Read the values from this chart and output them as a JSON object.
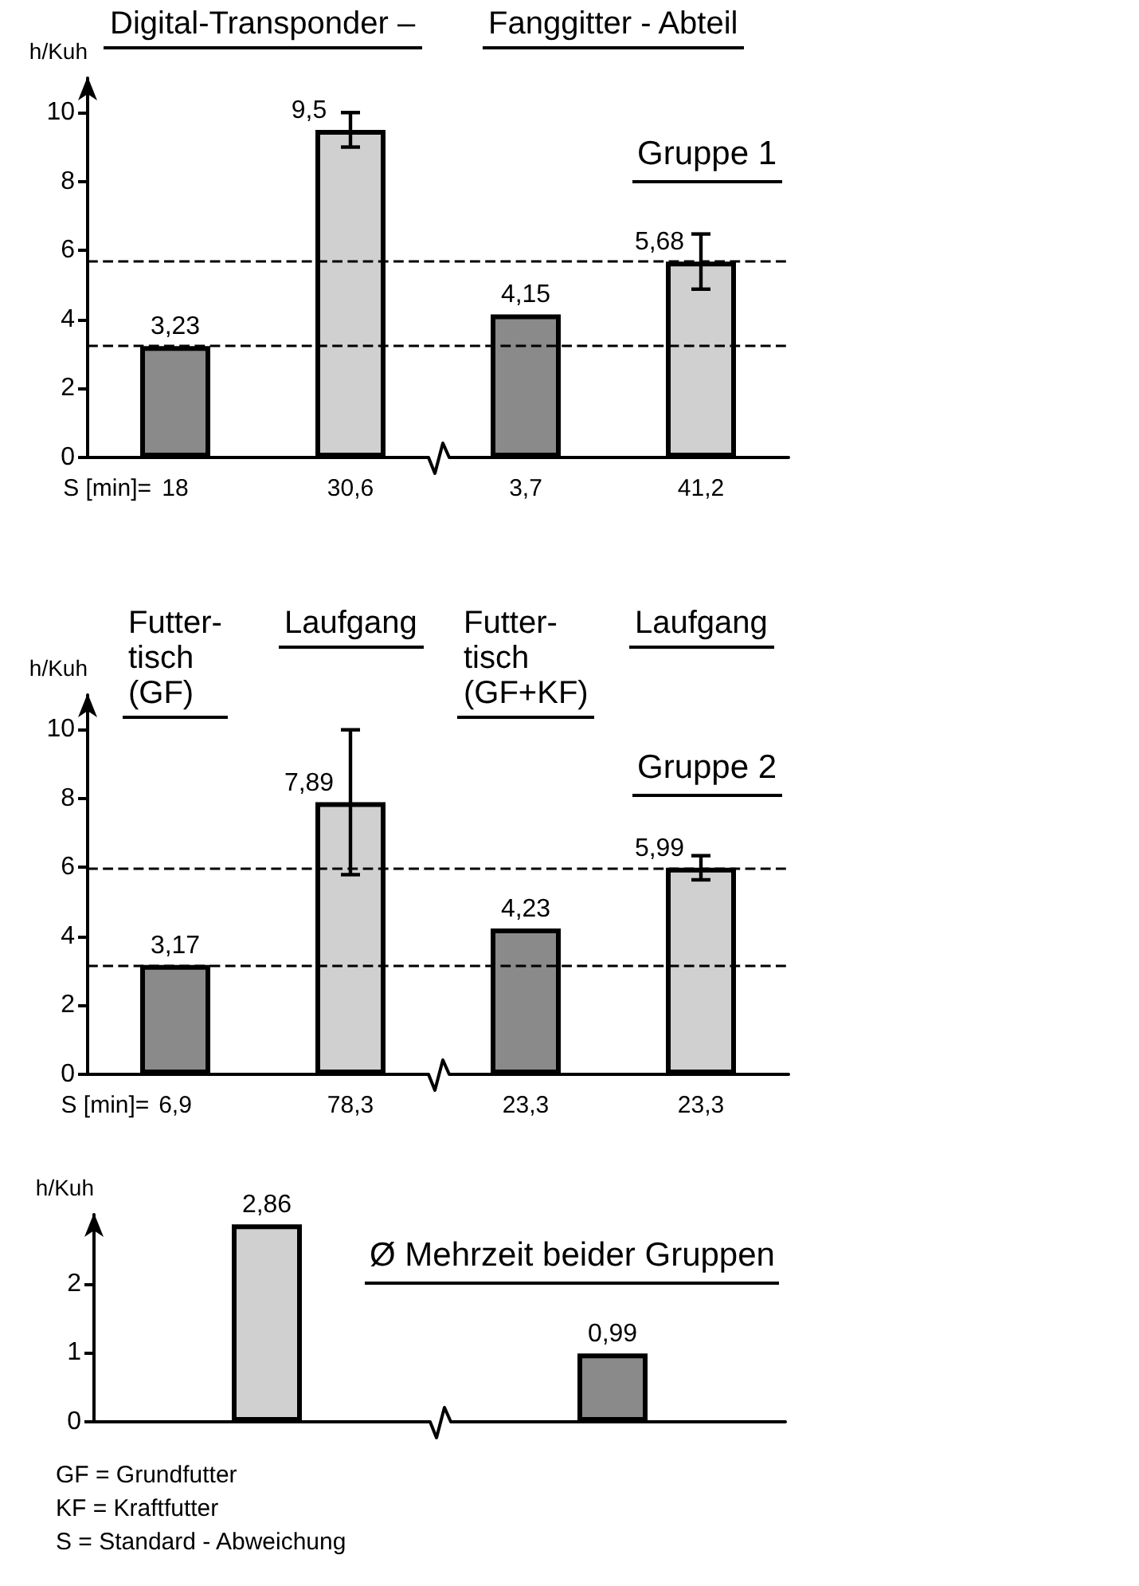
{
  "chart_data": [
    {
      "type": "bar",
      "title": "Gruppe 1",
      "xlabel": "S [min]=",
      "ylabel": "h/Kuh",
      "categories": [
        "18",
        "30,6",
        "3,7",
        "41,2"
      ],
      "values": [
        3.23,
        9.5,
        4.15,
        5.68
      ],
      "colors": [
        "#8a8a8a",
        "#d0d0d0",
        "#8a8a8a",
        "#d0d0d0"
      ],
      "errors": [
        null,
        0.5,
        null,
        0.8
      ],
      "value_labels": [
        "3,23",
        "9,5",
        "4,15",
        "5,68"
      ],
      "ylim": [
        0,
        11
      ],
      "yticks": [
        0,
        2,
        4,
        6,
        8,
        10
      ],
      "ref_lines": [
        {
          "axis": "y",
          "value": 3.23,
          "line_style": "dashed",
          "color": "#000000"
        },
        {
          "axis": "y",
          "value": 5.68,
          "line_style": "dashed",
          "color": "#000000"
        }
      ],
      "annotations": [
        "Digital-Transponder –",
        "Fanggitter - Abteil"
      ]
    },
    {
      "type": "bar",
      "title": "Gruppe 2",
      "xlabel": "S [min]=",
      "ylabel": "h/Kuh",
      "categories": [
        "6,9",
        "78,3",
        "23,3",
        "23,3"
      ],
      "values": [
        3.17,
        7.89,
        4.23,
        5.99
      ],
      "colors": [
        "#8a8a8a",
        "#d0d0d0",
        "#8a8a8a",
        "#d0d0d0"
      ],
      "errors": [
        null,
        2.1,
        null,
        0.35
      ],
      "value_labels": [
        "3,17",
        "7,89",
        "4,23",
        "5,99"
      ],
      "ylim": [
        0,
        11
      ],
      "yticks": [
        0,
        2,
        4,
        6,
        8,
        10
      ],
      "ref_lines": [
        {
          "axis": "y",
          "value": 3.17,
          "line_style": "dashed",
          "color": "#000000"
        },
        {
          "axis": "y",
          "value": 5.99,
          "line_style": "dashed",
          "color": "#000000"
        }
      ],
      "annotations": [
        "Futter-\ntisch\n(GF)",
        "Laufgang",
        "Futter-\ntisch\n(GF+KF)",
        "Laufgang"
      ]
    },
    {
      "type": "bar",
      "title": "Ø Mehrzeit beider Gruppen",
      "ylabel": "h/Kuh",
      "categories": [
        null,
        null
      ],
      "values": [
        2.86,
        0.99
      ],
      "colors": [
        "#d0d0d0",
        "#8a8a8a"
      ],
      "value_labels": [
        "2,86",
        "0,99"
      ],
      "ylim": [
        0,
        3
      ],
      "yticks": [
        0,
        1,
        2
      ]
    },
    {
      "type": "other",
      "annotations": [
        "GF = Grundfutter",
        "KF = Kraftfutter",
        "S = Standard - Abweichung"
      ]
    }
  ]
}
